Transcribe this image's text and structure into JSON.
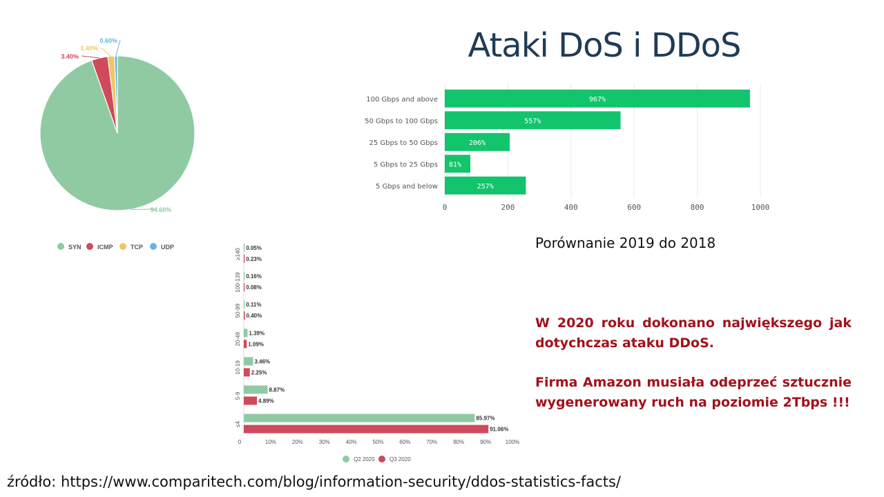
{
  "slide": {
    "title": "Ataki DoS i DDoS",
    "comparison_label": "Porównanie 2019 do 2018",
    "note_1": "W 2020 roku dokonano największego jak dotychczas ataku DDoS.",
    "note_2": "Firma Amazon musiała odeprzeć sztucznie wygenerowany ruch na poziomie 2Tbps !!!",
    "source": "źródło: https://www.comparitech.com/blog/information-security/ddos-statistics-facts/"
  },
  "chart_data": [
    {
      "type": "pie",
      "labels": [
        "SYN",
        "ICMP",
        "TCP",
        "UDP"
      ],
      "values": [
        94.6,
        3.4,
        1.4,
        0.6
      ],
      "value_labels": [
        "94.60%",
        "3.40%",
        "1.40%",
        "0.60%"
      ],
      "colors": [
        "#8fcaa3",
        "#cf4a5a",
        "#efc666",
        "#64b5df"
      ],
      "legend_position": "bottom"
    },
    {
      "type": "bar",
      "orientation": "horizontal",
      "categories": [
        "100 Gbps and above",
        "50 Gbps to 100 Gbps",
        "25 Gbps to 50 Gbps",
        "5 Gbps to 25 Gbps",
        "5 Gbps and below"
      ],
      "values": [
        967,
        557,
        206,
        81,
        257
      ],
      "value_labels": [
        "967%",
        "557%",
        "206%",
        "81%",
        "257%"
      ],
      "xlim": [
        0,
        1000
      ],
      "xticks": [
        0,
        200,
        400,
        600,
        800,
        1000
      ],
      "color": "#12c46c",
      "grid": true
    },
    {
      "type": "bar",
      "orientation": "horizontal",
      "categories": [
        "≥140",
        "100-139",
        "50-99",
        "20-49",
        "10-19",
        "5-9",
        "≤4"
      ],
      "series": [
        {
          "name": "Q2 2020",
          "color": "#8fcaa3",
          "values": [
            0.05,
            0.16,
            0.11,
            1.39,
            3.46,
            8.87,
            85.97
          ],
          "value_labels": [
            "0.05%",
            "0.16%",
            "0.11%",
            "1.39%",
            "3.46%",
            "8.87%",
            "85.97%"
          ]
        },
        {
          "name": "Q3 2020",
          "color": "#cf4a5a",
          "values": [
            0.23,
            0.08,
            0.4,
            1.09,
            2.25,
            4.89,
            91.06
          ],
          "value_labels": [
            "0.23%",
            "0.08%",
            "0.40%",
            "1.09%",
            "2.25%",
            "4.89%",
            "91.06%"
          ]
        }
      ],
      "xlim": [
        0,
        100
      ],
      "xticks": [
        "0",
        "10%",
        "20%",
        "30%",
        "40%",
        "50%",
        "60%",
        "70%",
        "80%",
        "90%",
        "100%"
      ],
      "legend_position": "bottom"
    }
  ]
}
